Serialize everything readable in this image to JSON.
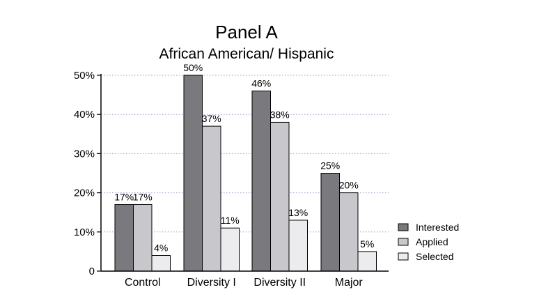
{
  "chart_data": {
    "type": "bar",
    "title": "Panel A",
    "subtitle": "African American/ Hispanic",
    "categories": [
      "Control",
      "Diversity I",
      "Diversity II",
      "Major"
    ],
    "series": [
      {
        "name": "Interested",
        "values": [
          17,
          50,
          46,
          25
        ],
        "labels": [
          "17%",
          "50%",
          "46%",
          "25%"
        ],
        "color": "#7a7a7e"
      },
      {
        "name": "Applied",
        "values": [
          17,
          37,
          38,
          20
        ],
        "labels": [
          "17%",
          "37%",
          "38%",
          "20%"
        ],
        "color": "#c8c8cc"
      },
      {
        "name": "Selected",
        "values": [
          4,
          11,
          13,
          5
        ],
        "labels": [
          "4%",
          "11%",
          "13%",
          "5%"
        ],
        "color": "#ececee"
      }
    ],
    "ylim": [
      0,
      50
    ],
    "yticks": [
      0,
      10,
      20,
      30,
      40,
      50
    ],
    "ytick_labels": [
      "0",
      "10%",
      "20%",
      "30%",
      "40%",
      "50%"
    ],
    "grid": true,
    "legend": "right"
  }
}
